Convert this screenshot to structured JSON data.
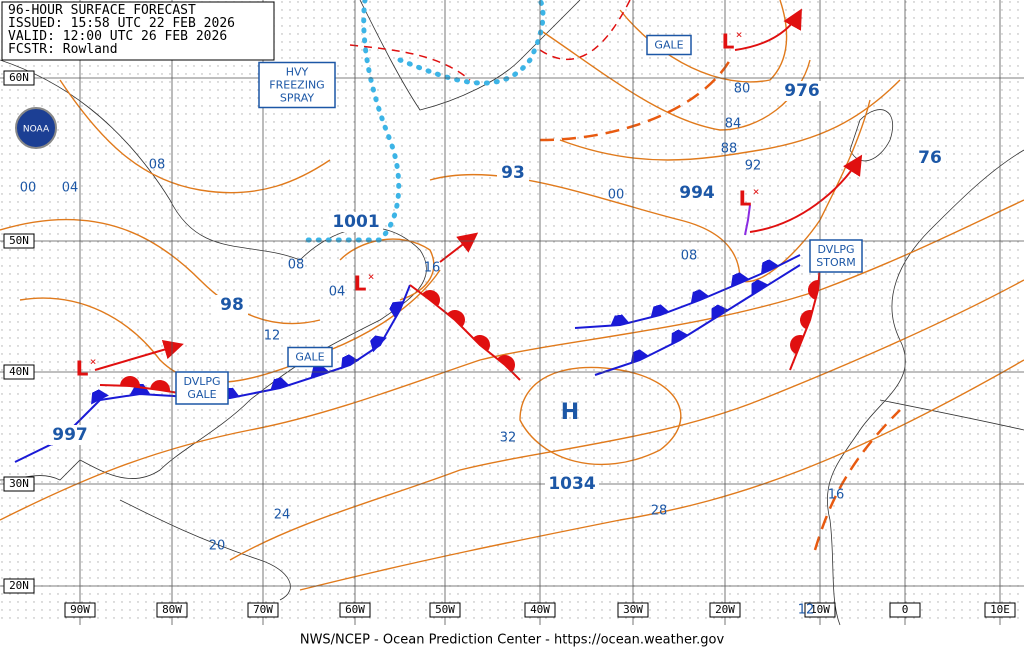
{
  "header": {
    "title": "96-HOUR SURFACE FORECAST",
    "issued": "ISSUED: 15:58 UTC 22 FEB 2026",
    "valid": "VALID: 12:00 UTC 26 FEB 2026",
    "forecaster": "FCSTR: Rowland"
  },
  "logo": "NOAA",
  "footer": "NWS/NCEP - Ocean Prediction Center - https://ocean.weather.gov",
  "latitude_labels": [
    "60N",
    "50N",
    "40N",
    "30N",
    "20N"
  ],
  "longitude_labels": [
    "90W",
    "80W",
    "70W",
    "60W",
    "50W",
    "40W",
    "30W",
    "20W",
    "10W",
    "0",
    "10E"
  ],
  "lows": [
    "L",
    "L",
    "L",
    "L"
  ],
  "highs": [
    "H"
  ],
  "center_pressures": [
    "997",
    "98",
    "1001",
    "93",
    "994",
    "976",
    "76",
    "1034"
  ],
  "isobar_labels": [
    "08",
    "00",
    "04",
    "08",
    "04",
    "12",
    "16",
    "80",
    "84",
    "88",
    "92",
    "00",
    "08",
    "32",
    "24",
    "20",
    "28",
    "16",
    "12"
  ],
  "warnings": [
    {
      "lines": [
        "HVY",
        "FREEZING",
        "SPRAY"
      ]
    },
    {
      "lines": [
        "GALE"
      ]
    },
    {
      "lines": [
        "GALE"
      ]
    },
    {
      "lines": [
        "DVLPG",
        "GALE"
      ]
    },
    {
      "lines": [
        "DVLPG",
        "STORM"
      ]
    }
  ]
}
